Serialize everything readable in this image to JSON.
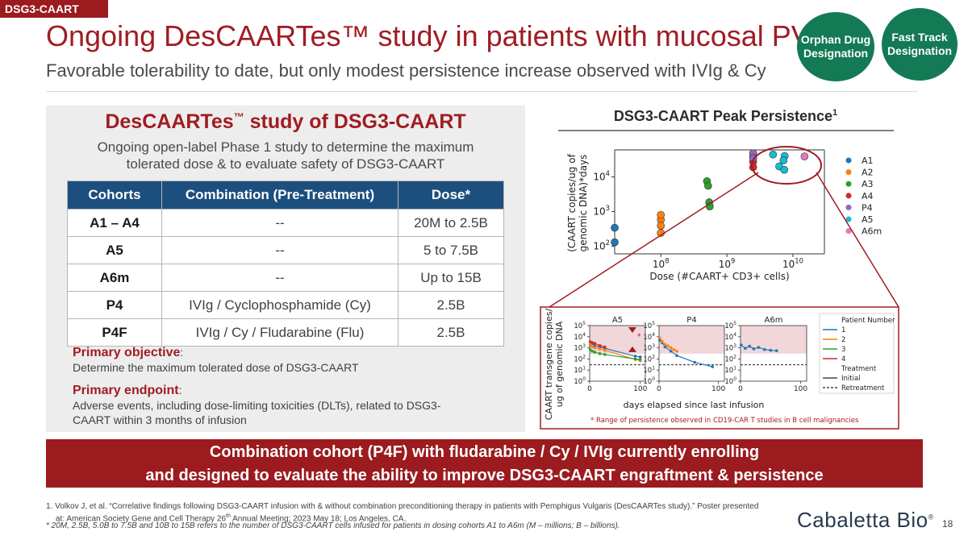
{
  "header": {
    "tag": "DSG3-CAART",
    "title": "Ongoing DesCAARTes™ study in patients with mucosal PV",
    "subtitle": "Favorable tolerability to date, but only modest persistence increase observed with IVIg & Cy",
    "badges": [
      {
        "label1": "Orphan Drug",
        "label2": "Designation"
      },
      {
        "label1": "Fast Track",
        "label2": "Designation"
      }
    ]
  },
  "panel": {
    "title_pre": "DesCAARTes",
    "title_tm": "™",
    "title_post": " study of DSG3-CAART",
    "desc_line1": "Ongoing open-label Phase 1 study to determine the maximum",
    "desc_line2": "tolerated dose & to evaluate safety of DSG3-CAART",
    "table": {
      "headers": [
        "Cohorts",
        "Combination (Pre-Treatment)",
        "Dose*"
      ],
      "rows": [
        [
          "A1 – A4",
          "--",
          "20M to 2.5B"
        ],
        [
          "A5",
          "--",
          "5 to 7.5B"
        ],
        [
          "A6m",
          "--",
          "Up to 15B"
        ],
        [
          "P4",
          "IVIg / Cyclophosphamide (Cy)",
          "2.5B"
        ],
        [
          "P4F",
          "IVIg / Cy / Fludarabine (Flu)",
          "2.5B"
        ]
      ]
    },
    "objective_label": "Primary objective",
    "objective_text": "Determine the maximum tolerated dose of DSG3-CAART",
    "endpoint_label": "Primary endpoint",
    "endpoint_line1": "Adverse events, including dose-limiting toxicities (DLTs), related to DSG3-",
    "endpoint_line2": "CAART within 3 months of infusion",
    "colon": ":"
  },
  "chart_title": "DSG3-CAART Peak Persistence",
  "chart_title_sup": "1",
  "chart_data": [
    {
      "type": "scatter",
      "title": "DSG3-CAART Peak Persistence",
      "xlabel": "Dose (#CAART+ CD3+ cells)",
      "ylabel_line1": "(CAART copies/ug of",
      "ylabel_line2": "genomic DNA)*days",
      "xscale": "log",
      "yscale": "log",
      "xlim": [
        20000000,
        30000000000
      ],
      "ylim": [
        60,
        60000
      ],
      "xticks": [
        {
          "value": 100000000,
          "base": "10",
          "exp": "8"
        },
        {
          "value": 1000000000,
          "base": "10",
          "exp": "9"
        },
        {
          "value": 10000000000,
          "base": "10",
          "exp": "10"
        }
      ],
      "yticks": [
        {
          "value": 100,
          "base": "10",
          "exp": "2"
        },
        {
          "value": 1000,
          "base": "10",
          "exp": "3"
        },
        {
          "value": 10000,
          "base": "10",
          "exp": "4"
        }
      ],
      "series": [
        {
          "name": "A1",
          "color": "#1f77b4",
          "points": [
            [
              20000000,
              130
            ],
            [
              20000000,
              340
            ]
          ]
        },
        {
          "name": "A2",
          "color": "#ff7f0e",
          "points": [
            [
              100000000,
              580
            ],
            [
              100000000,
              800
            ],
            [
              100000000,
              390
            ],
            [
              100000000,
              240
            ]
          ]
        },
        {
          "name": "A3",
          "color": "#2ca02c",
          "points": [
            [
              500000000,
              7500
            ],
            [
              520000000,
              5500
            ],
            [
              540000000,
              1850
            ],
            [
              550000000,
              1400
            ]
          ]
        },
        {
          "name": "A4",
          "color": "#d62728",
          "points": [
            [
              2500000000,
              38000
            ],
            [
              2500000000,
              27000
            ],
            [
              2500000000,
              19000
            ]
          ]
        },
        {
          "name": "P4",
          "color": "#9467bd",
          "points": [
            [
              2500000000,
              48000
            ],
            [
              2500000000,
              35000
            ]
          ]
        },
        {
          "name": "A5",
          "color": "#17becf",
          "points": [
            [
              5000000000,
              44000
            ],
            [
              7500000000,
              40000
            ],
            [
              7200000000,
              30000
            ],
            [
              6200000000,
              20000
            ],
            [
              7400000000,
              16000
            ]
          ]
        },
        {
          "name": "A6m",
          "color": "#e377c2",
          "points": [
            [
              15000000000,
              39000
            ]
          ]
        }
      ],
      "annotation": "red ellipse highlighting highest-dose cohorts"
    },
    {
      "type": "line",
      "title": "Patient persistence over time (A5, P4, A6m)",
      "panels": [
        "A5",
        "P4",
        "A6m"
      ],
      "xlabel": "days elapsed since last infusion",
      "ylabel_line1": "CAART transgene copies/",
      "ylabel_line2": "ug of genomic DNA",
      "yscale": "log",
      "ylim": [
        1,
        100000
      ],
      "xlim": [
        0,
        110
      ],
      "xticks": [
        {
          "label": "0",
          "value": 0
        },
        {
          "label": "100",
          "value": 100
        }
      ],
      "yticks": [
        {
          "value": 1,
          "base": "10",
          "exp": "0"
        },
        {
          "value": 10,
          "base": "10",
          "exp": "1"
        },
        {
          "value": 100,
          "base": "10",
          "exp": "2"
        },
        {
          "value": 1000,
          "base": "10",
          "exp": "3"
        },
        {
          "value": 10000,
          "base": "10",
          "exp": "4"
        },
        {
          "value": 100000,
          "base": "10",
          "exp": "5"
        }
      ],
      "reference_line": 30,
      "cd19_range": [
        300,
        100000
      ],
      "asterisk": "*",
      "legend": {
        "title": "Patient Number",
        "patients": [
          {
            "label": "1",
            "color": "#1f77b4"
          },
          {
            "label": "2",
            "color": "#ff7f0e"
          },
          {
            "label": "3",
            "color": "#2ca02c"
          },
          {
            "label": "4",
            "color": "#d62728"
          }
        ],
        "treatment_title": "Treatment",
        "initial": "Initial",
        "retreatment": "Retreatment"
      },
      "series": [
        {
          "panel": "A5",
          "patient": "1",
          "color": "#1f77b4",
          "points": [
            [
              1,
              1800
            ],
            [
              5,
              2500
            ],
            [
              10,
              1500
            ],
            [
              20,
              1200
            ],
            [
              30,
              900
            ],
            [
              90,
              180
            ],
            [
              100,
              150
            ]
          ]
        },
        {
          "panel": "A5",
          "patient": "2",
          "color": "#ff7f0e",
          "points": [
            [
              1,
              2000
            ],
            [
              5,
              1300
            ],
            [
              10,
              1000
            ],
            [
              20,
              800
            ],
            [
              30,
              600
            ],
            [
              90,
              90
            ],
            [
              100,
              70
            ]
          ]
        },
        {
          "panel": "A5",
          "patient": "3",
          "color": "#2ca02c",
          "points": [
            [
              1,
              700
            ],
            [
              5,
              500
            ],
            [
              10,
              400
            ],
            [
              20,
              300
            ],
            [
              30,
              250
            ],
            [
              90,
              100
            ],
            [
              100,
              90
            ]
          ]
        },
        {
          "panel": "A5",
          "patient": "4",
          "color": "#d62728",
          "points": [
            [
              1,
              3500
            ],
            [
              5,
              3000
            ],
            [
              10,
              2500
            ],
            [
              20,
              1600
            ],
            [
              30,
              1200
            ]
          ]
        },
        {
          "panel": "P4",
          "patient": "1",
          "color": "#1f77b4",
          "points": [
            [
              1,
              5000
            ],
            [
              5,
              3000
            ],
            [
              10,
              1200
            ],
            [
              20,
              500
            ],
            [
              30,
              200
            ],
            [
              60,
              50
            ],
            [
              90,
              20
            ]
          ]
        },
        {
          "panel": "P4",
          "patient": "2",
          "color": "#ff7f0e",
          "points": [
            [
              1,
              8000
            ],
            [
              5,
              4000
            ],
            [
              10,
              2000
            ],
            [
              15,
              1500
            ],
            [
              20,
              1000
            ],
            [
              25,
              700
            ],
            [
              30,
              500
            ]
          ]
        },
        {
          "panel": "A6m",
          "patient": "1",
          "color": "#1f77b4",
          "points": [
            [
              1,
              1800
            ],
            [
              8,
              900
            ],
            [
              15,
              1400
            ],
            [
              22,
              800
            ],
            [
              30,
              1100
            ],
            [
              40,
              700
            ],
            [
              50,
              600
            ],
            [
              60,
              550
            ]
          ]
        }
      ]
    }
  ],
  "chart_footnote": "* Range of persistence observed in CD19-CAR T studies in B cell malignancies",
  "banner": {
    "line1": "Combination cohort (P4F) with fludarabine / Cy / IVIg currently enrolling",
    "line2": "and designed to evaluate the ability to improve DSG3-CAART engraftment & persistence"
  },
  "footnotes": {
    "f1_line1": "1. Volkov J, et al. “Correlative findings following DSG3-CAART infusion with & without combination preconditioning therapy in patients with Pemphigus Vulgaris (DesCAARTes study).” Poster presented",
    "f1_line2_pre": "at: American Society Gene and Cell Therapy 26",
    "f1_line2_sup": "th",
    "f1_line2_post": " Annual Meeting; 2023 May 18; Los Angeles, CA.",
    "f2": "* 20M, 2.5B, 5.0B to 7.5B and 10B to 15B refers to the number of DSG3-CAART cells infused for patients in dosing cohorts A1 to A6m (M – millions; B – billions)."
  },
  "logo": {
    "text": "Cabaletta Bio",
    "mark": "®"
  },
  "page_number": "18",
  "colors": {
    "brand_red": "#a01c22",
    "table_header": "#1d4f7e",
    "badge_green": "#137a55"
  }
}
